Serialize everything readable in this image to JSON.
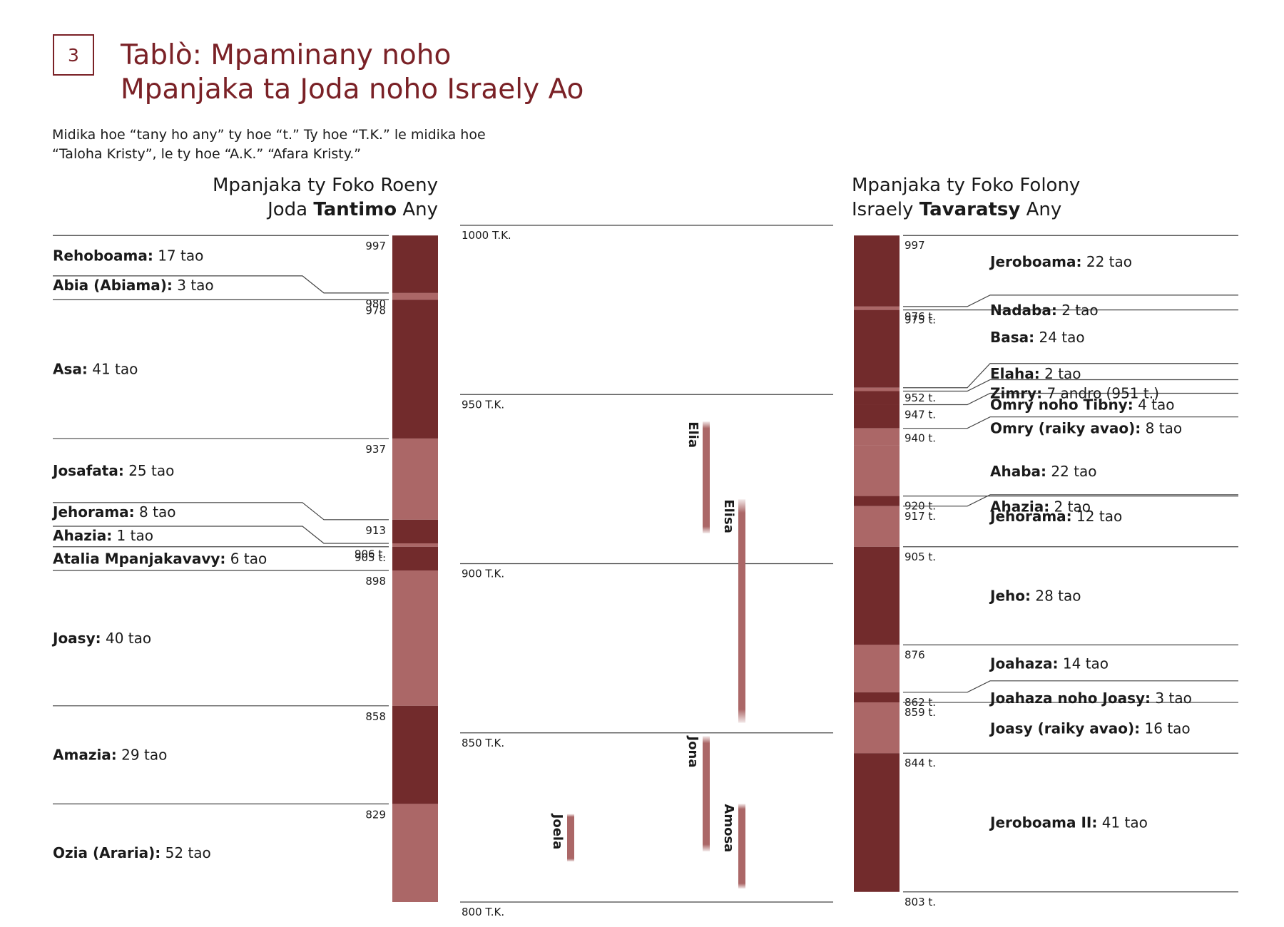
{
  "number": "3",
  "title_line1": "Tablò: Mpaminany noho",
  "title_line2": "Mpanjaka ta Joda noho Israely Ao",
  "intro_line1": "Midika hoe “tany ho any” ty hoe “t.” Ty hoe “T.K.” le midika hoe",
  "intro_line2": "“Taloha Kristy”, le ty hoe “A.K.” “Afara Kristy.”",
  "left_header": {
    "line1": "Mpanjaka ty Foko Roeny",
    "line2_pre": "Joda ",
    "line2_bold": "Tantimo",
    "line2_post": " Any"
  },
  "right_header": {
    "line1": "Mpanjaka ty Foko Folony",
    "line2_pre": "Israely ",
    "line2_bold": "Tavaratsy",
    "line2_post": " Any"
  },
  "colors": {
    "dark": "#722b2c",
    "light": "#ab6767",
    "accent": "#7a2126",
    "rule": "#444444"
  },
  "timeline": {
    "ticks": [
      {
        "year": 1000,
        "label": "1000 T.K."
      },
      {
        "year": 950,
        "label": "950 T.K."
      },
      {
        "year": 900,
        "label": "900 T.K."
      },
      {
        "year": 850,
        "label": "850 T.K."
      },
      {
        "year": 800,
        "label": "800 T.K."
      }
    ],
    "prophets": [
      {
        "name": "Elia",
        "from": 942,
        "to": 909,
        "lane": 0
      },
      {
        "name": "Elisa",
        "from": 919,
        "to": 853,
        "lane": 1
      },
      {
        "name": "Jona",
        "from": 849,
        "to": 815,
        "lane": 0
      },
      {
        "name": "Amosa",
        "from": 829,
        "to": 804,
        "lane": 1
      },
      {
        "name": "Joela",
        "from": 826,
        "to": 812,
        "lane": 2
      }
    ]
  },
  "judah": [
    {
      "name": "Rehoboama:",
      "dur": "17 tao",
      "start": 997,
      "label": "997",
      "shade": "dark",
      "offset": false
    },
    {
      "name": "Abia (Abiama):",
      "dur": "3 tao",
      "start": 980,
      "label": "980",
      "shade": "light",
      "offset": true
    },
    {
      "name": "Asa:",
      "dur": "41 tao",
      "start": 978,
      "label": "978",
      "shade": "dark",
      "offset": false
    },
    {
      "name": "Josafata:",
      "dur": "25 tao",
      "start": 937,
      "label": "937",
      "shade": "light",
      "offset": false
    },
    {
      "name": "Jehorama:",
      "dur": "8 tao",
      "start": 913,
      "label": "913",
      "shade": "dark",
      "offset": true
    },
    {
      "name": "Ahazia:",
      "dur": "1 tao",
      "start": 906,
      "label": "906 t.",
      "shade": "light",
      "offset": true
    },
    {
      "name": "Atalia Mpanjakavavy:",
      "dur": "6 tao",
      "start": 905,
      "label": "905 t.",
      "shade": "dark",
      "offset": false
    },
    {
      "name": "Joasy:",
      "dur": "40 tao",
      "start": 898,
      "label": "898",
      "shade": "light",
      "offset": false
    },
    {
      "name": "Amazia:",
      "dur": "29 tao",
      "start": 858,
      "label": "858",
      "shade": "dark",
      "offset": false
    },
    {
      "name": "Ozia (Araria):",
      "dur": "52 tao",
      "start": 829,
      "label": "829",
      "shade": "light",
      "offset": false
    }
  ],
  "judah_end": 800,
  "israel": [
    {
      "name": "Jeroboama:",
      "dur": "22 tao",
      "start": 997,
      "label": "997",
      "shade": "dark",
      "offset": false
    },
    {
      "name": "Nadaba:",
      "dur": "2 tao",
      "start": 976,
      "label": "976 t.",
      "shade": "light",
      "offset": true
    },
    {
      "name": "Basa:",
      "dur": "24 tao",
      "start": 975,
      "label": "975 t.",
      "shade": "dark",
      "offset": false
    },
    {
      "name": "Elaha:",
      "dur": "2 tao",
      "start": 952,
      "label": "952 t.",
      "shade": "light",
      "offset": true,
      "textOffset": -28
    },
    {
      "name": "Zimry:",
      "dur": "7 andro (951 t.)",
      "start": 951,
      "label": "",
      "shade": "dark",
      "offset": true,
      "textOffset": 0
    },
    {
      "name": "Omry noho Tibny:",
      "dur": "4 tao",
      "start": 947,
      "label": "947 t.",
      "shade": "dark",
      "offset": true
    },
    {
      "name": "Omry (raiky avao):",
      "dur": "8 tao",
      "start": 940,
      "label": "940 t.",
      "shade": "light",
      "offset": true
    },
    {
      "name": "Ahaba:",
      "dur": "22 tao",
      "start": 935,
      "label": "",
      "shade": "light",
      "offset": false,
      "noRule": true
    },
    {
      "name": "Ahazia:",
      "dur": "2 tao",
      "start": 920,
      "label": "920 t.",
      "shade": "dark",
      "offset": false
    },
    {
      "name": "Jehorama:",
      "dur": "12 tao",
      "start": 917,
      "label": "917 t.",
      "shade": "light",
      "offset": true
    },
    {
      "name": "Jeho:",
      "dur": "28 tao",
      "start": 905,
      "label": "905 t.",
      "shade": "dark",
      "offset": false
    },
    {
      "name": "Joahaza:",
      "dur": "14 tao",
      "start": 876,
      "label": "876",
      "shade": "light",
      "offset": false
    },
    {
      "name": "Joahaza noho Joasy:",
      "dur": "3 tao",
      "start": 862,
      "label": "862 t.",
      "shade": "dark",
      "offset": true
    },
    {
      "name": "Joasy (raiky avao):",
      "dur": "16 tao",
      "start": 859,
      "label": "859 t.",
      "shade": "light",
      "offset": false
    },
    {
      "name": "Jeroboama II:",
      "dur": "41 tao",
      "start": 844,
      "label": "844 t.",
      "shade": "dark",
      "offset": false
    }
  ],
  "israel_end": 803,
  "israel_end_label": "803 t."
}
